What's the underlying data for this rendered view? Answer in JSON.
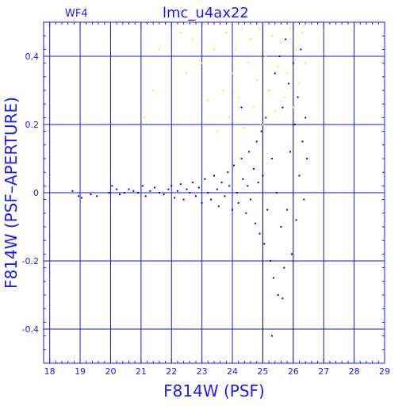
{
  "colors": {
    "axis": "#1a1aff",
    "grid": "#1a1acc",
    "blue_points": "#0000ee",
    "yellow_points": "#ffee00",
    "background": "#ffffff"
  },
  "chart_data": {
    "type": "scatter",
    "title": "lmc_u4ax22",
    "chip_label": "WF4",
    "xlabel": "F814W (PSF)",
    "ylabel": "F814W (PSF–APERTURE)",
    "xlim": [
      17.8,
      29
    ],
    "ylim": [
      -0.5,
      0.5
    ],
    "x_ticks": [
      18,
      19,
      20,
      21,
      22,
      23,
      24,
      25,
      26,
      27,
      28,
      29
    ],
    "y_ticks": [
      -0.4,
      -0.2,
      0,
      0.2,
      0.4
    ],
    "y_tick_labels": [
      "-0.4",
      "-0.2",
      "0",
      "0.2",
      "0.4"
    ],
    "grid": true,
    "vertical_lines": [
      25,
      26
    ],
    "series": [
      {
        "color": "blue",
        "points": [
          [
            18.75,
            0.005
          ],
          [
            18.95,
            -0.01
          ],
          [
            19.05,
            -0.015
          ],
          [
            19.35,
            -0.005
          ],
          [
            19.55,
            -0.01
          ],
          [
            19.95,
            0.0
          ],
          [
            20.05,
            0.02
          ],
          [
            20.2,
            0.01
          ],
          [
            20.3,
            -0.005
          ],
          [
            20.45,
            0.0
          ],
          [
            20.6,
            0.01
          ],
          [
            20.75,
            0.005
          ],
          [
            20.9,
            0.0
          ],
          [
            21.05,
            0.02
          ],
          [
            21.15,
            -0.01
          ],
          [
            21.3,
            0.005
          ],
          [
            21.45,
            0.015
          ],
          [
            21.6,
            0.0
          ],
          [
            21.75,
            -0.005
          ],
          [
            21.9,
            0.01
          ],
          [
            22.0,
            0.02
          ],
          [
            22.1,
            -0.015
          ],
          [
            22.2,
            0.005
          ],
          [
            22.3,
            0.025
          ],
          [
            22.4,
            -0.02
          ],
          [
            22.5,
            0.01
          ],
          [
            22.6,
            0.0
          ],
          [
            22.7,
            0.03
          ],
          [
            22.8,
            -0.01
          ],
          [
            22.9,
            0.015
          ],
          [
            23.0,
            -0.03
          ],
          [
            23.1,
            0.04
          ],
          [
            23.2,
            0.0
          ],
          [
            23.3,
            -0.02
          ],
          [
            23.4,
            0.05
          ],
          [
            23.5,
            0.01
          ],
          [
            23.55,
            -0.04
          ],
          [
            23.65,
            0.03
          ],
          [
            23.75,
            -0.01
          ],
          [
            23.85,
            0.06
          ],
          [
            23.9,
            0.02
          ],
          [
            24.0,
            -0.05
          ],
          [
            24.05,
            0.08
          ],
          [
            24.15,
            0.0
          ],
          [
            24.2,
            -0.03
          ],
          [
            24.3,
            0.1
          ],
          [
            24.35,
            0.04
          ],
          [
            24.45,
            -0.06
          ],
          [
            24.5,
            0.02
          ],
          [
            24.55,
            0.12
          ],
          [
            24.6,
            -0.02
          ],
          [
            24.7,
            0.07
          ],
          [
            24.75,
            -0.09
          ],
          [
            24.8,
            0.15
          ],
          [
            24.85,
            0.03
          ],
          [
            24.9,
            -0.12
          ],
          [
            24.95,
            0.18
          ],
          [
            25.0,
            0.05
          ],
          [
            25.05,
            -0.15
          ],
          [
            25.1,
            0.22
          ],
          [
            25.15,
            -0.05
          ],
          [
            25.2,
            0.3
          ],
          [
            25.25,
            -0.2
          ],
          [
            25.3,
            0.1
          ],
          [
            25.35,
            -0.25
          ],
          [
            25.4,
            0.35
          ],
          [
            25.45,
            0.0
          ],
          [
            25.5,
            -0.3
          ],
          [
            25.55,
            0.4
          ],
          [
            25.6,
            -0.1
          ],
          [
            25.65,
            0.25
          ],
          [
            25.7,
            -0.22
          ],
          [
            25.75,
            0.45
          ],
          [
            25.8,
            -0.05
          ],
          [
            25.85,
            0.32
          ],
          [
            25.9,
            0.12
          ],
          [
            25.95,
            -0.18
          ],
          [
            26.0,
            0.38
          ],
          [
            26.05,
            0.2
          ],
          [
            26.1,
            -0.08
          ],
          [
            26.15,
            0.28
          ],
          [
            26.2,
            0.05
          ],
          [
            26.25,
            0.42
          ],
          [
            26.3,
            0.15
          ],
          [
            26.35,
            -0.02
          ],
          [
            26.4,
            0.22
          ],
          [
            26.45,
            0.1
          ],
          [
            25.3,
            -0.42
          ],
          [
            25.65,
            -0.31
          ],
          [
            24.3,
            0.25
          ]
        ]
      },
      {
        "color": "yellow",
        "points": [
          [
            21.1,
            0.22
          ],
          [
            21.4,
            0.3
          ],
          [
            21.6,
            0.42
          ],
          [
            22.3,
            0.47
          ],
          [
            22.5,
            0.35
          ],
          [
            22.7,
            0.45
          ],
          [
            23.0,
            0.38
          ],
          [
            23.2,
            0.27
          ],
          [
            23.4,
            0.42
          ],
          [
            23.5,
            0.18
          ],
          [
            23.7,
            0.3
          ],
          [
            23.8,
            0.47
          ],
          [
            23.9,
            0.22
          ],
          [
            24.0,
            0.35
          ],
          [
            24.1,
            0.42
          ],
          [
            24.2,
            0.28
          ],
          [
            24.3,
            0.48
          ],
          [
            24.4,
            0.19
          ],
          [
            24.5,
            0.38
          ],
          [
            24.6,
            0.45
          ],
          [
            24.7,
            0.25
          ],
          [
            24.8,
            0.33
          ],
          [
            24.9,
            0.48
          ],
          [
            25.0,
            0.2
          ],
          [
            25.1,
            0.4
          ],
          [
            25.2,
            0.3
          ],
          [
            25.3,
            0.46
          ],
          [
            25.4,
            0.24
          ],
          [
            25.5,
            0.37
          ],
          [
            25.6,
            0.44
          ],
          [
            25.7,
            0.28
          ],
          [
            25.8,
            0.35
          ],
          [
            25.9,
            0.48
          ],
          [
            26.0,
            0.25
          ],
          [
            26.1,
            0.42
          ],
          [
            26.2,
            0.32
          ],
          [
            26.3,
            0.47
          ],
          [
            26.4,
            0.38
          ],
          [
            25.75,
            0.5
          ],
          [
            26.35,
            0.49
          ]
        ]
      }
    ]
  }
}
